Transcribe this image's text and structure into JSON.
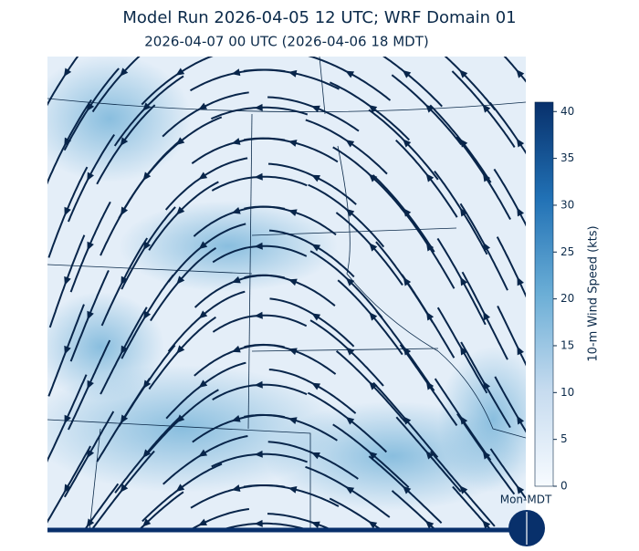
{
  "header": {
    "title": "Model Run 2026-04-05 12 UTC; WRF Domain 01",
    "subtitle": "2026-04-07 00 UTC  (2026-04-06 18 MDT)"
  },
  "colorbar": {
    "label": "10-m Wind Speed (kts)",
    "lim": [
      0,
      41
    ],
    "ticks": [
      0,
      5,
      10,
      15,
      20,
      25,
      30,
      35,
      40
    ],
    "colors": [
      "#f7fbff",
      "#c6dbef",
      "#6baed6",
      "#2171b5",
      "#08306b"
    ]
  },
  "footer": {
    "label": "Mon-MDT"
  }
}
